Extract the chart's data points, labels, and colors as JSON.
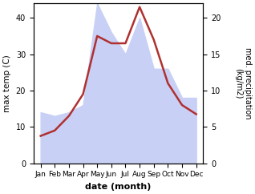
{
  "months": [
    "Jan",
    "Feb",
    "Mar",
    "Apr",
    "May",
    "Jun",
    "Jul",
    "Aug",
    "Sep",
    "Oct",
    "Nov",
    "Dec"
  ],
  "temperature": [
    7.5,
    9,
    13,
    19,
    35,
    33,
    33,
    43,
    34,
    22,
    16,
    13.5
  ],
  "precipitation": [
    7,
    6.5,
    7,
    8,
    22,
    18,
    15,
    20,
    13,
    13,
    9,
    9
  ],
  "temp_color": "#b03030",
  "precip_fill_color": "#c8d0f5",
  "left_ylim": [
    0,
    44
  ],
  "right_ylim": [
    0,
    22
  ],
  "left_yticks": [
    0,
    10,
    20,
    30,
    40
  ],
  "right_yticks": [
    0,
    5,
    10,
    15,
    20
  ],
  "xlabel": "date (month)",
  "ylabel_left": "max temp (C)",
  "ylabel_right": "med. precipitation\n(kg/m2)",
  "fig_width": 3.18,
  "fig_height": 2.42,
  "dpi": 100
}
